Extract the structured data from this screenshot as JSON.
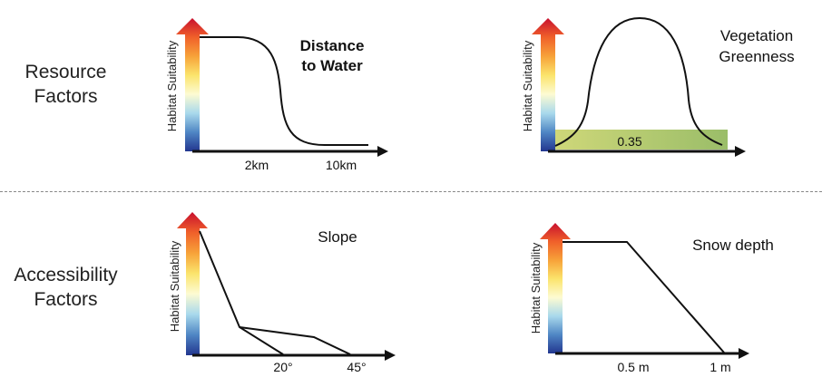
{
  "rows": {
    "resource": {
      "line1": "Resource",
      "line2": "Factors"
    },
    "accessibility": {
      "line1": "Accessibility",
      "line2": "Factors"
    }
  },
  "y_axis_label": "Habitat Suitability",
  "gradient_colors": [
    "#c8102e",
    "#f0602a",
    "#f7a239",
    "#fbe46c",
    "#fdfbd2",
    "#a9d9ec",
    "#4f86c4",
    "#22368f"
  ],
  "band_colors": [
    "#c9d36a",
    "#8fb658"
  ],
  "panels": {
    "distance": {
      "title_line1": "Distance",
      "title_line2": "to Water",
      "ticks": [
        "2km",
        "10km"
      ]
    },
    "vegetation": {
      "title_line1": "Vegetation",
      "title_line2": "Greenness",
      "band_label": "0.35"
    },
    "slope": {
      "title": "Slope",
      "ticks": [
        "20°",
        "45°"
      ]
    },
    "snow": {
      "title": "Snow depth",
      "ticks": [
        "0.5 m",
        "1 m"
      ]
    }
  }
}
